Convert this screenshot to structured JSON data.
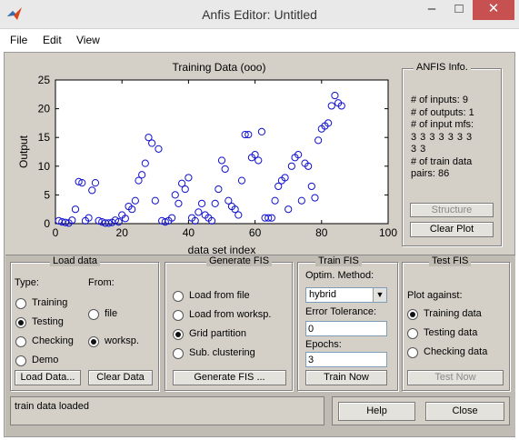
{
  "window": {
    "title": "Anfis Editor: Untitled",
    "icon": "matlab-logo-icon"
  },
  "menu": [
    "File",
    "Edit",
    "View"
  ],
  "chart_data": {
    "type": "scatter",
    "title": "Training Data (ooo)",
    "xlabel": "data set index",
    "ylabel": "Output",
    "xlim": [
      0,
      100
    ],
    "ylim": [
      0,
      25
    ],
    "xticks": [
      "0",
      "20",
      "40",
      "60",
      "80",
      "100"
    ],
    "yticks": [
      "0",
      "5",
      "10",
      "15",
      "20",
      "25"
    ],
    "grid": false,
    "marker": "circle-open",
    "x": [
      1,
      2,
      3,
      4,
      5,
      6,
      7,
      8,
      9,
      10,
      11,
      12,
      13,
      14,
      15,
      16,
      17,
      18,
      19,
      20,
      21,
      22,
      23,
      24,
      25,
      26,
      27,
      28,
      29,
      30,
      31,
      32,
      33,
      34,
      35,
      36,
      37,
      38,
      39,
      40,
      41,
      42,
      43,
      44,
      45,
      46,
      47,
      48,
      49,
      50,
      51,
      52,
      53,
      54,
      55,
      56,
      57,
      58,
      59,
      60,
      61,
      62,
      63,
      64,
      65,
      66,
      67,
      68,
      69,
      70,
      71,
      72,
      73,
      74,
      75,
      76,
      77,
      78,
      79,
      80,
      81,
      82,
      83,
      84,
      85,
      86
    ],
    "y": [
      0.5,
      0.3,
      0.2,
      0.1,
      0.6,
      2.5,
      7.3,
      7.1,
      0.5,
      1.0,
      5.8,
      7.1,
      0.5,
      0.3,
      0.1,
      0.1,
      0.2,
      0.6,
      0.3,
      1.5,
      0.9,
      3.0,
      2.5,
      4.0,
      7.5,
      8.5,
      10.5,
      15.0,
      14.0,
      4.0,
      13.0,
      0.5,
      0.3,
      0.5,
      1.0,
      5.0,
      3.5,
      7.0,
      6.0,
      8.0,
      1.0,
      0.5,
      2.0,
      3.5,
      1.5,
      1.0,
      0.5,
      3.5,
      6.0,
      11.0,
      9.5,
      4.0,
      3.0,
      2.5,
      1.5,
      7.5,
      15.5,
      15.5,
      11.5,
      12.0,
      11.0,
      16.0,
      1.0,
      1.0,
      1.0,
      4.0,
      6.5,
      7.5,
      8.0,
      2.5,
      10.0,
      11.5,
      12.0,
      4.0,
      10.5,
      10.0,
      6.5,
      4.5,
      14.5,
      16.5,
      17.0,
      17.5,
      20.5,
      22.3,
      21.0,
      20.5
    ]
  },
  "info": {
    "title": "ANFIS Info.",
    "lines": [
      "# of inputs: 9",
      "# of outputs: 1",
      "# of input mfs:",
      "3 3 3 3 3 3 3",
      "3 3",
      "# of train data",
      "pairs: 86"
    ],
    "structure_label": "Structure",
    "clear_plot_label": "Clear Plot"
  },
  "load_data": {
    "title": "Load data",
    "type_label": "Type:",
    "from_label": "From:",
    "types": [
      "Training",
      "Testing",
      "Checking",
      "Demo"
    ],
    "type_selected": "Testing",
    "sources": [
      "file",
      "worksp."
    ],
    "source_selected": "worksp.",
    "load_button": "Load Data...",
    "clear_button": "Clear Data"
  },
  "generate_fis": {
    "title": "Generate FIS",
    "options": [
      "Load from file",
      "Load from worksp.",
      "Grid partition",
      "Sub. clustering"
    ],
    "selected": "Grid partition",
    "button": "Generate FIS ..."
  },
  "train_fis": {
    "title": "Train FIS",
    "method_label": "Optim. Method:",
    "method_value": "hybrid",
    "error_label": "Error Tolerance:",
    "error_value": "0",
    "epochs_label": "Epochs:",
    "epochs_value": "3",
    "button": "Train Now"
  },
  "test_fis": {
    "title": "Test FIS",
    "plot_against_label": "Plot against:",
    "options": [
      "Training data",
      "Testing data",
      "Checking data"
    ],
    "selected": "Training data",
    "button": "Test Now"
  },
  "status": "train data loaded",
  "help_label": "Help",
  "close_label": "Close"
}
